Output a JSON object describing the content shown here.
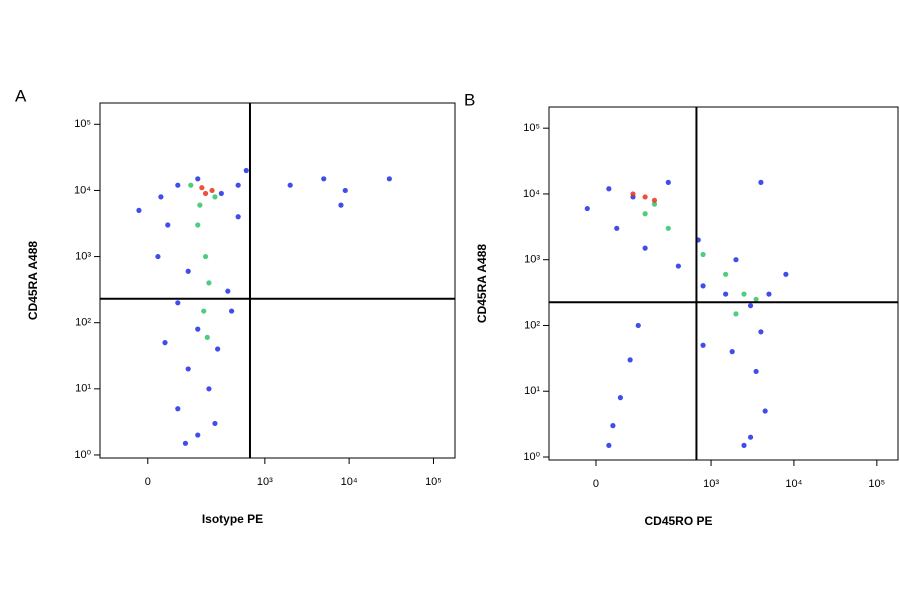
{
  "chart_data": [
    {
      "type": "scatter",
      "label": "A",
      "x_label": "Isotype PE",
      "y_label": "CD45RA A488",
      "xscale": "biexponential",
      "yscale": "log",
      "xlim": [
        -140,
        180000
      ],
      "ylim": [
        0.9,
        210000
      ],
      "xticks": [
        0,
        {
          "value": 1000,
          "label": "10³"
        },
        {
          "value": 10000,
          "label": "10⁴"
        },
        {
          "value": 100000,
          "label": "10⁵"
        }
      ],
      "yticks": [
        {
          "value": 1,
          "label": "10⁰"
        },
        {
          "value": 10,
          "label": "10¹"
        },
        {
          "value": 100,
          "label": "10²"
        },
        {
          "value": 1000,
          "label": "10³"
        },
        {
          "value": 10000,
          "label": "10⁴"
        },
        {
          "value": 100000,
          "label": "10⁵"
        }
      ],
      "quadrant_gate": {
        "x": 665,
        "y": 230
      },
      "series": [
        {
          "color": "#1f2ee8",
          "x": [
            -20,
            30,
            75,
            150,
            300,
            480,
            47,
            110,
            23,
            75,
            150,
            270,
            110,
            75,
            150,
            210,
            360,
            480,
            600,
            40,
            100,
            250,
            2000,
            5000,
            9000,
            30000,
            8000,
            400
          ],
          "values": [
            5000,
            8000,
            12000,
            15000,
            9000,
            12000,
            3000,
            600,
            1000,
            200,
            80,
            40,
            20,
            5,
            2,
            10,
            300,
            4000,
            20000,
            50,
            1.5,
            3,
            12000,
            15000,
            10000,
            15000,
            6000,
            150
          ]
        },
        {
          "color": "#2fc46a",
          "x": [
            150,
            190,
            210,
            180,
            200,
            160,
            250,
            120
          ],
          "values": [
            3000,
            1000,
            400,
            150,
            60,
            6000,
            8000,
            12000
          ]
        },
        {
          "color": "#e8331c",
          "x": [
            190,
            230,
            170
          ],
          "values": [
            9000,
            10000,
            11000
          ]
        }
      ]
    },
    {
      "type": "scatter",
      "label": "B",
      "x_label": "CD45RO PE",
      "y_label": "CD45RA A488",
      "xscale": "biexponential",
      "yscale": "log",
      "xlim": [
        -140,
        180000
      ],
      "ylim": [
        0.9,
        210000
      ],
      "xticks": [
        0,
        {
          "value": 1000,
          "label": "10³"
        },
        {
          "value": 10000,
          "label": "10⁴"
        },
        {
          "value": 100000,
          "label": "10⁵"
        }
      ],
      "yticks": [
        {
          "value": 1,
          "label": "10⁰"
        },
        {
          "value": 10,
          "label": "10¹"
        },
        {
          "value": 100,
          "label": "10²"
        },
        {
          "value": 1000,
          "label": "10³"
        },
        {
          "value": 10000,
          "label": "10⁴"
        },
        {
          "value": 100000,
          "label": "10⁵"
        }
      ],
      "quadrant_gate": {
        "x": 665,
        "y": 225
      },
      "series": [
        {
          "color": "#1f2ee8",
          "x": [
            -20,
            30,
            100,
            300,
            50,
            150,
            400,
            800,
            1500,
            3000,
            4000,
            3500,
            4500,
            3000,
            2500,
            1800,
            5000,
            800,
            60,
            40,
            90,
            120,
            30,
            4000,
            8000,
            2000,
            700
          ],
          "values": [
            6000,
            12000,
            9000,
            15000,
            3000,
            1500,
            800,
            400,
            300,
            200,
            80,
            20,
            5,
            2,
            1.5,
            40,
            300,
            50,
            8,
            3,
            30,
            100,
            1.5,
            15000,
            600,
            1000,
            2000
          ]
        },
        {
          "color": "#2fc46a",
          "x": [
            150,
            300,
            800,
            1500,
            2500,
            3500,
            200,
            2000
          ],
          "values": [
            5000,
            3000,
            1200,
            600,
            300,
            250,
            7000,
            150
          ]
        },
        {
          "color": "#e8331c",
          "x": [
            150,
            100,
            200
          ],
          "values": [
            9000,
            10000,
            8000
          ]
        }
      ]
    }
  ]
}
